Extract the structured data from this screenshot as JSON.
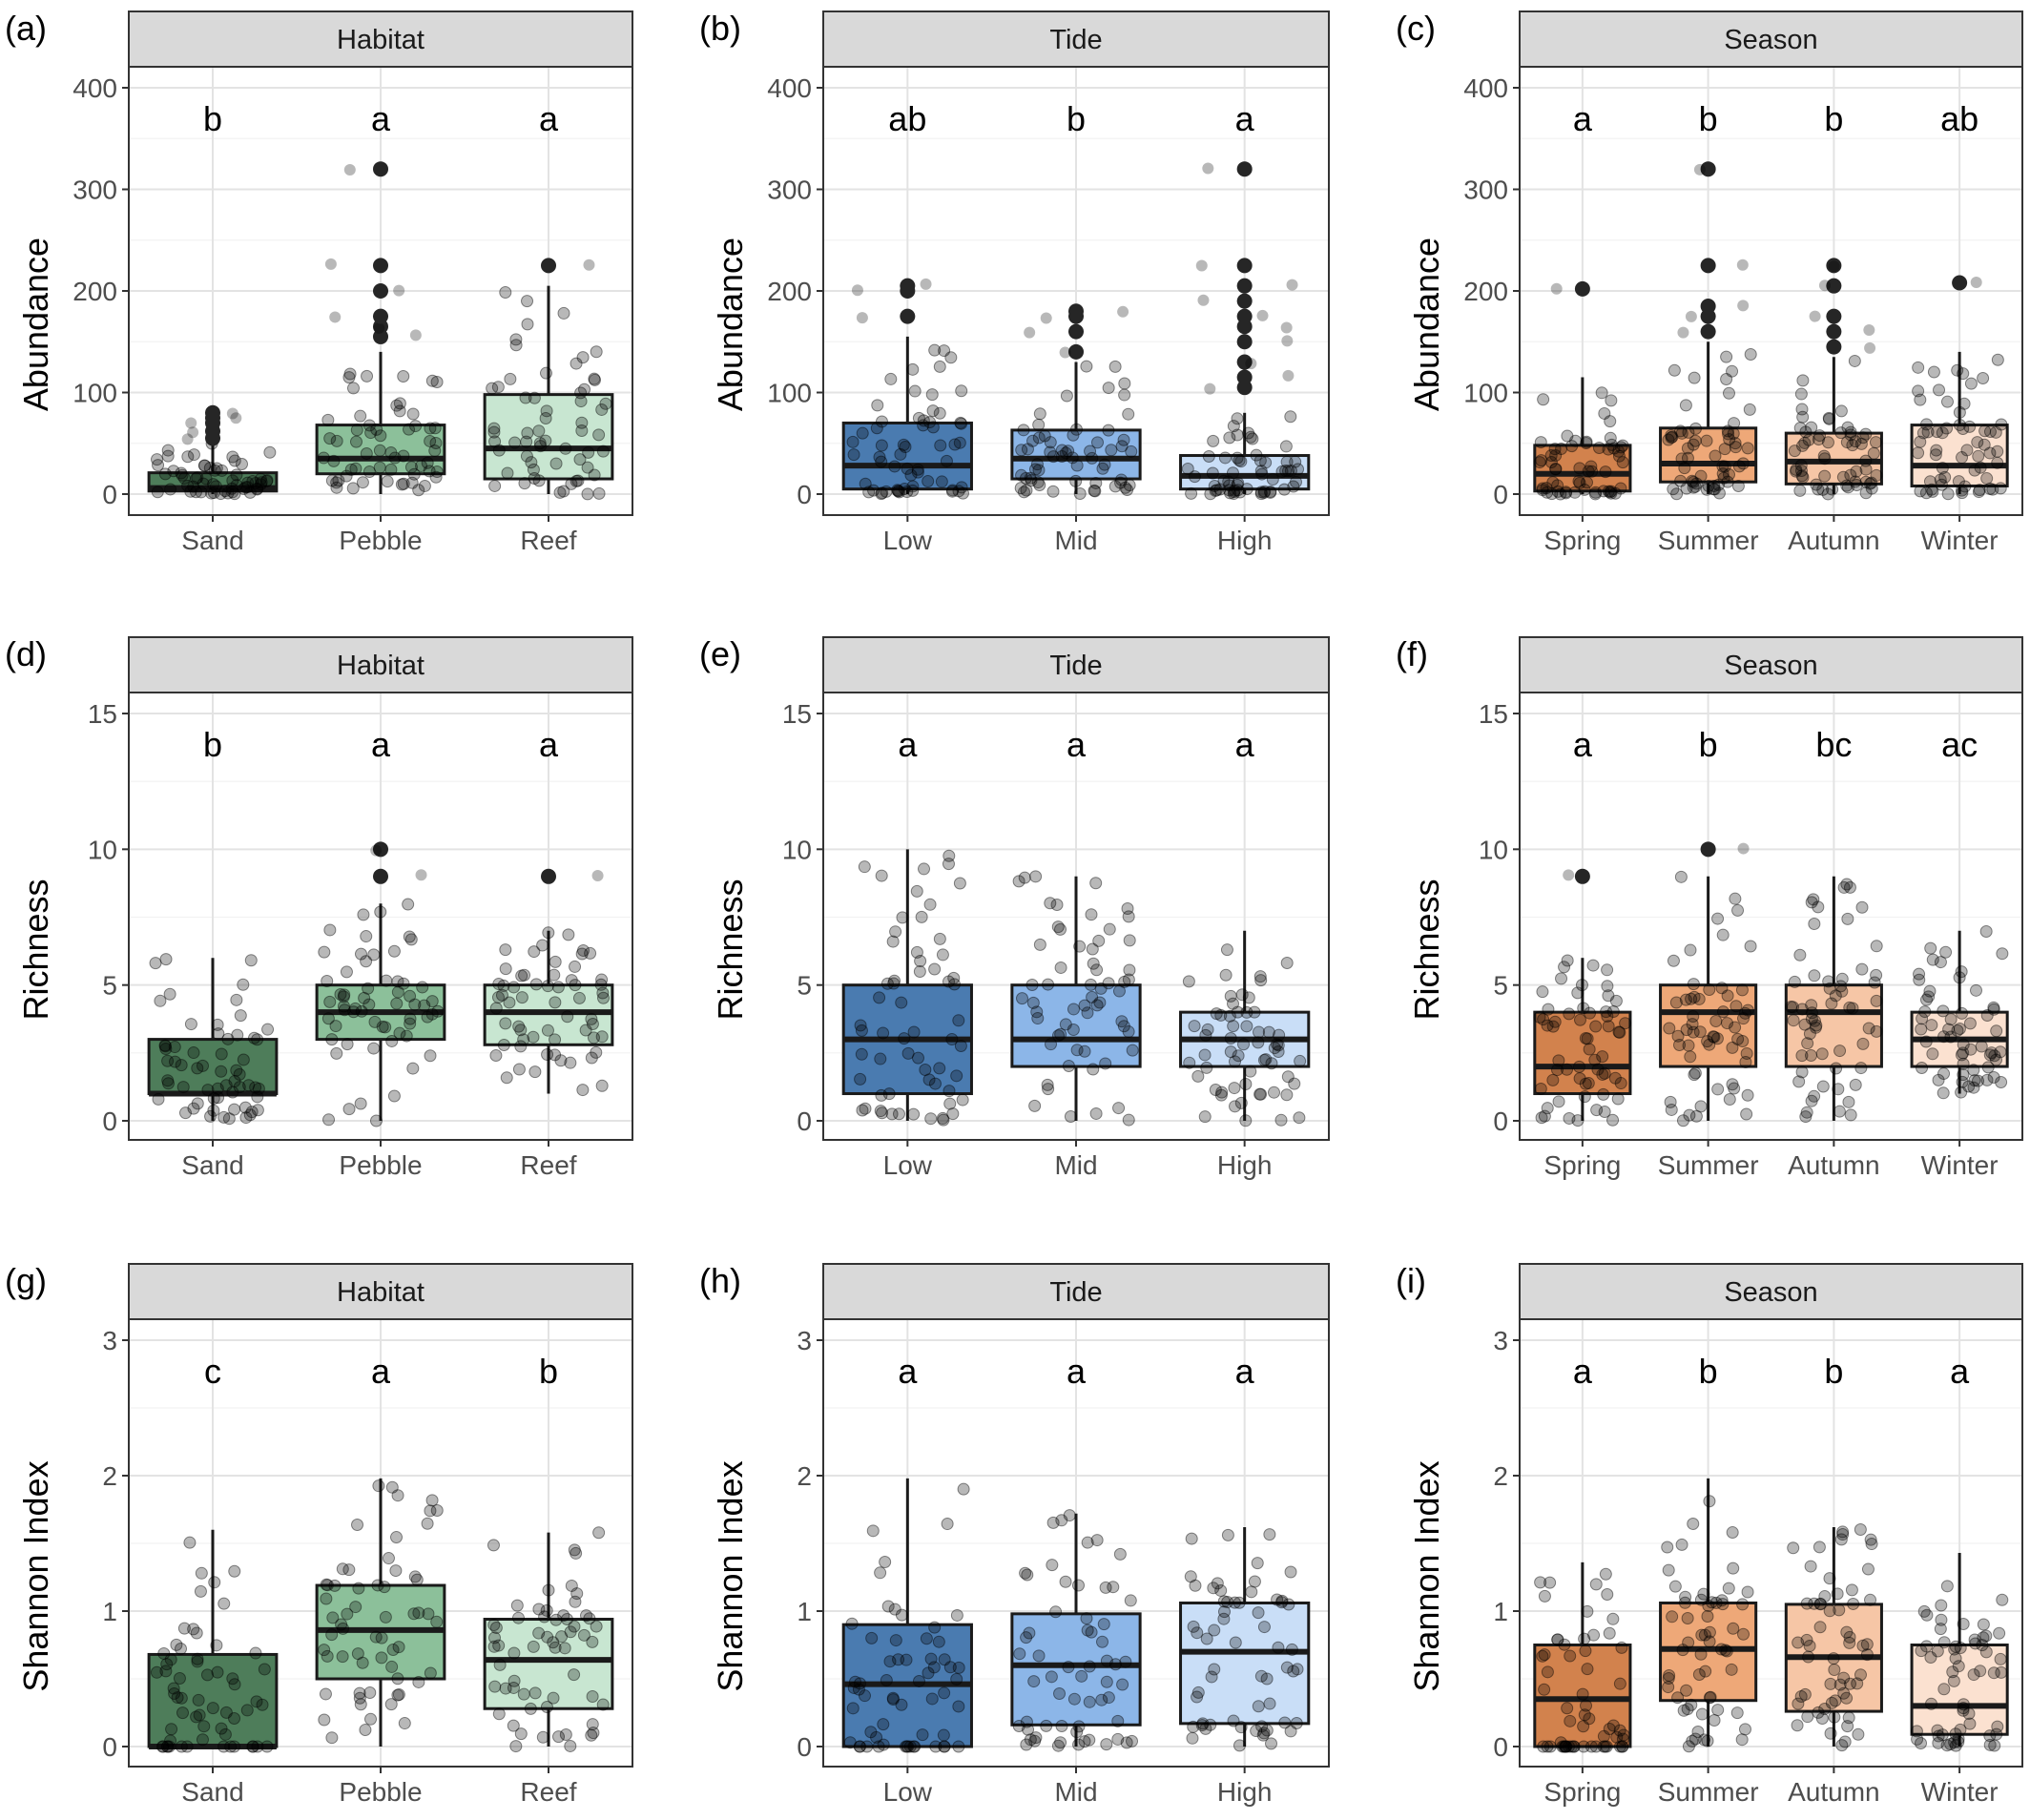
{
  "colors": {
    "habitat": [
      "#4e7d5a",
      "#8cc09a",
      "#c8e6d1"
    ],
    "tide": [
      "#4a7bb0",
      "#8cb6e8",
      "#c9def7"
    ],
    "season": [
      "#d2824d",
      "#eea878",
      "#f6c6a6",
      "#fbe1d0"
    ],
    "strip_bg": "#d9d9d9",
    "point": "#000000"
  },
  "chart_data": [
    {
      "id": "a",
      "tag": "(a)",
      "type": "box",
      "strip": "Habitat",
      "ylabel": "Abundance",
      "ylim": [
        0,
        400
      ],
      "yticks": [
        "0",
        "100",
        "200",
        "300",
        "400"
      ],
      "categories": [
        "Sand",
        "Pebble",
        "Reef"
      ],
      "letters": [
        "b",
        "a",
        "a"
      ],
      "boxes": [
        {
          "q1": 3,
          "median": 6,
          "q3": 21,
          "wlo": 0,
          "whi": 50,
          "outliers": [
            55,
            62,
            70,
            75,
            80
          ]
        },
        {
          "q1": 20,
          "median": 35,
          "q3": 68,
          "wlo": 0,
          "whi": 140,
          "outliers": [
            155,
            165,
            175,
            200,
            225,
            320
          ]
        },
        {
          "q1": 15,
          "median": 45,
          "q3": 98,
          "wlo": 0,
          "whi": 205,
          "outliers": [
            225
          ]
        }
      ]
    },
    {
      "id": "b",
      "tag": "(b)",
      "type": "box",
      "strip": "Tide",
      "ylabel": "Abundance",
      "ylim": [
        0,
        400
      ],
      "yticks": [
        "0",
        "100",
        "200",
        "300",
        "400"
      ],
      "categories": [
        "Low",
        "Mid",
        "High"
      ],
      "letters": [
        "ab",
        "b",
        "a"
      ],
      "boxes": [
        {
          "q1": 5,
          "median": 28,
          "q3": 70,
          "wlo": 0,
          "whi": 155,
          "outliers": [
            175,
            200,
            205
          ]
        },
        {
          "q1": 15,
          "median": 35,
          "q3": 63,
          "wlo": 0,
          "whi": 130,
          "outliers": [
            140,
            160,
            175,
            180
          ]
        },
        {
          "q1": 5,
          "median": 18,
          "q3": 38,
          "wlo": 0,
          "whi": 80,
          "outliers": [
            105,
            115,
            130,
            150,
            165,
            175,
            190,
            205,
            225,
            320
          ]
        }
      ]
    },
    {
      "id": "c",
      "tag": "(c)",
      "type": "box",
      "strip": "Season",
      "ylabel": "Abundance",
      "ylim": [
        0,
        400
      ],
      "yticks": [
        "0",
        "100",
        "200",
        "300",
        "400"
      ],
      "categories": [
        "Spring",
        "Summer",
        "Autumn",
        "Winter"
      ],
      "letters": [
        "a",
        "b",
        "b",
        "ab"
      ],
      "boxes": [
        {
          "q1": 3,
          "median": 20,
          "q3": 48,
          "wlo": 0,
          "whi": 115,
          "outliers": [
            202
          ]
        },
        {
          "q1": 12,
          "median": 30,
          "q3": 65,
          "wlo": 0,
          "whi": 150,
          "outliers": [
            160,
            175,
            185,
            225,
            320
          ]
        },
        {
          "q1": 10,
          "median": 32,
          "q3": 60,
          "wlo": 0,
          "whi": 135,
          "outliers": [
            145,
            160,
            175,
            205,
            225
          ]
        },
        {
          "q1": 8,
          "median": 28,
          "q3": 68,
          "wlo": 0,
          "whi": 140,
          "outliers": [
            208
          ]
        }
      ]
    },
    {
      "id": "d",
      "tag": "(d)",
      "type": "box",
      "strip": "Habitat",
      "ylabel": "Richness",
      "ylim": [
        0,
        15
      ],
      "yticks": [
        "0",
        "5",
        "10",
        "15"
      ],
      "categories": [
        "Sand",
        "Pebble",
        "Reef"
      ],
      "letters": [
        "b",
        "a",
        "a"
      ],
      "boxes": [
        {
          "q1": 1,
          "median": 1,
          "q3": 3,
          "wlo": 0,
          "whi": 6,
          "outliers": []
        },
        {
          "q1": 3,
          "median": 4,
          "q3": 5,
          "wlo": 0,
          "whi": 8,
          "outliers": [
            9,
            10
          ]
        },
        {
          "q1": 2.8,
          "median": 4,
          "q3": 5,
          "wlo": 1,
          "whi": 7,
          "outliers": [
            9
          ]
        }
      ]
    },
    {
      "id": "e",
      "tag": "(e)",
      "type": "box",
      "strip": "Tide",
      "ylabel": "Richness",
      "ylim": [
        0,
        15
      ],
      "yticks": [
        "0",
        "5",
        "10",
        "15"
      ],
      "categories": [
        "Low",
        "Mid",
        "High"
      ],
      "letters": [
        "a",
        "a",
        "a"
      ],
      "boxes": [
        {
          "q1": 1,
          "median": 3,
          "q3": 5,
          "wlo": 0,
          "whi": 10,
          "outliers": []
        },
        {
          "q1": 2,
          "median": 3,
          "q3": 5,
          "wlo": 0,
          "whi": 9,
          "outliers": []
        },
        {
          "q1": 2,
          "median": 3,
          "q3": 4,
          "wlo": 0,
          "whi": 7,
          "outliers": []
        }
      ]
    },
    {
      "id": "f",
      "tag": "(f)",
      "type": "box",
      "strip": "Season",
      "ylabel": "Richness",
      "ylim": [
        0,
        15
      ],
      "yticks": [
        "0",
        "5",
        "10",
        "15"
      ],
      "categories": [
        "Spring",
        "Summer",
        "Autumn",
        "Winter"
      ],
      "letters": [
        "a",
        "b",
        "bc",
        "ac"
      ],
      "boxes": [
        {
          "q1": 1,
          "median": 2,
          "q3": 4,
          "wlo": 0,
          "whi": 6,
          "outliers": [
            9
          ]
        },
        {
          "q1": 2,
          "median": 4,
          "q3": 5,
          "wlo": 0,
          "whi": 9,
          "outliers": [
            10
          ]
        },
        {
          "q1": 2,
          "median": 4,
          "q3": 5,
          "wlo": 0,
          "whi": 9,
          "outliers": []
        },
        {
          "q1": 2,
          "median": 3,
          "q3": 4,
          "wlo": 1,
          "whi": 7,
          "outliers": []
        }
      ]
    },
    {
      "id": "g",
      "tag": "(g)",
      "type": "box",
      "strip": "Habitat",
      "ylabel": "Shannon Index",
      "ylim": [
        0,
        3
      ],
      "yticks": [
        "0",
        "1",
        "2",
        "3"
      ],
      "categories": [
        "Sand",
        "Pebble",
        "Reef"
      ],
      "letters": [
        "c",
        "a",
        "b"
      ],
      "boxes": [
        {
          "q1": 0,
          "median": 0,
          "q3": 0.68,
          "wlo": 0,
          "whi": 1.6,
          "outliers": []
        },
        {
          "q1": 0.5,
          "median": 0.86,
          "q3": 1.19,
          "wlo": 0,
          "whi": 1.98,
          "outliers": []
        },
        {
          "q1": 0.28,
          "median": 0.64,
          "q3": 0.94,
          "wlo": 0,
          "whi": 1.58,
          "outliers": []
        }
      ]
    },
    {
      "id": "h",
      "tag": "(h)",
      "type": "box",
      "strip": "Tide",
      "ylabel": "Shannon Index",
      "ylim": [
        0,
        3
      ],
      "yticks": [
        "0",
        "1",
        "2",
        "3"
      ],
      "categories": [
        "Low",
        "Mid",
        "High"
      ],
      "letters": [
        "a",
        "a",
        "a"
      ],
      "boxes": [
        {
          "q1": 0,
          "median": 0.46,
          "q3": 0.9,
          "wlo": 0,
          "whi": 1.98,
          "outliers": []
        },
        {
          "q1": 0.16,
          "median": 0.6,
          "q3": 0.98,
          "wlo": 0,
          "whi": 1.72,
          "outliers": []
        },
        {
          "q1": 0.17,
          "median": 0.7,
          "q3": 1.06,
          "wlo": 0,
          "whi": 1.62,
          "outliers": []
        }
      ]
    },
    {
      "id": "i",
      "tag": "(i)",
      "type": "box",
      "strip": "Season",
      "ylabel": "Shannon Index",
      "ylim": [
        0,
        3
      ],
      "yticks": [
        "0",
        "1",
        "2",
        "3"
      ],
      "categories": [
        "Spring",
        "Summer",
        "Autumn",
        "Winter"
      ],
      "letters": [
        "a",
        "b",
        "b",
        "a"
      ],
      "boxes": [
        {
          "q1": 0,
          "median": 0.35,
          "q3": 0.75,
          "wlo": 0,
          "whi": 1.36,
          "outliers": []
        },
        {
          "q1": 0.34,
          "median": 0.72,
          "q3": 1.06,
          "wlo": 0,
          "whi": 1.98,
          "outliers": []
        },
        {
          "q1": 0.26,
          "median": 0.66,
          "q3": 1.05,
          "wlo": 0,
          "whi": 1.62,
          "outliers": []
        },
        {
          "q1": 0.09,
          "median": 0.3,
          "q3": 0.75,
          "wlo": 0,
          "whi": 1.43,
          "outliers": []
        }
      ]
    }
  ]
}
